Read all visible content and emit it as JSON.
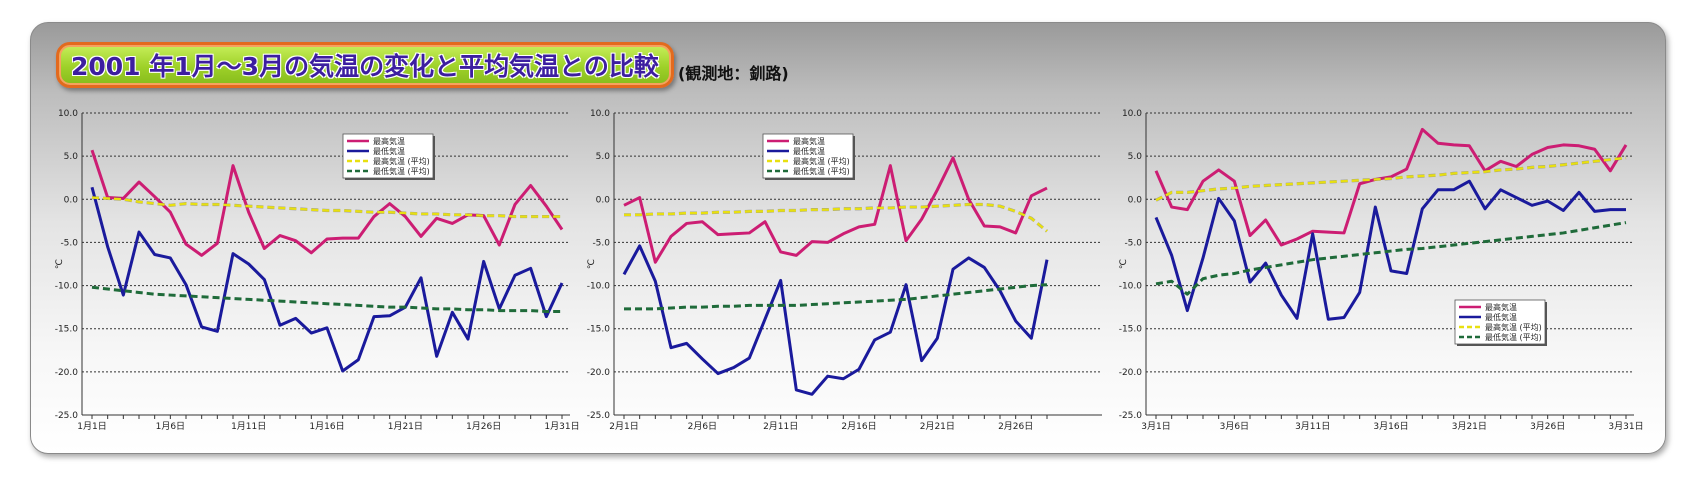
{
  "title": "2001 年1月～3月の気温の変化と平均気温との比較",
  "subtitle": "(観測地：釧路)",
  "colors": {
    "max_temp": "#cc1d73",
    "min_temp": "#1a1a9c",
    "max_avg": "#e8e010",
    "min_avg": "#1f6b3a"
  },
  "chart_data": [
    {
      "type": "line",
      "ylabel": "℃",
      "ylim": [
        -25,
        10
      ],
      "yticks": [
        "10.0",
        "5.0",
        "0.0",
        "-5.0",
        "-10.0",
        "-15.0",
        "-20.0",
        "-25.0"
      ],
      "x_tick_labels": [
        "1月1日",
        "1月6日",
        "1月11日",
        "1月16日",
        "1月21日",
        "1月26日",
        "1月31日"
      ],
      "x_tick_days": [
        1,
        6,
        11,
        16,
        21,
        26,
        31
      ],
      "legend_position": "top-center",
      "grid": true,
      "series": [
        {
          "name": "最高気温",
          "style": "solid",
          "values": [
            5.7,
            0.2,
            0.1,
            2,
            0.3,
            -1.5,
            -5.2,
            -6.5,
            -5.1,
            3.9,
            -1.5,
            -5.7,
            -4.2,
            -4.8,
            -6.2,
            -4.6,
            -4.5,
            -4.5,
            -2,
            -0.5,
            -2,
            -4.3,
            -2.2,
            -2.8,
            -1.8,
            -1.9,
            -5.3,
            -0.6,
            1.6,
            -0.8,
            -3.5
          ]
        },
        {
          "name": "最低気温",
          "style": "solid",
          "values": [
            1.4,
            -5.5,
            -11.1,
            -3.8,
            -6.4,
            -6.8,
            -9.9,
            -14.8,
            -15.3,
            -6.3,
            -7.5,
            -9.3,
            -14.6,
            -13.8,
            -15.5,
            -14.9,
            -19.9,
            -18.6,
            -13.6,
            -13.5,
            -12.5,
            -9.1,
            -18.2,
            -13.1,
            -16.2,
            -7.2,
            -12.7,
            -8.8,
            -8,
            -13.6,
            -9.7
          ]
        },
        {
          "name": "最高気温 (平均)",
          "style": "dashed",
          "values": [
            0.2,
            0.1,
            0,
            -0.3,
            -0.5,
            -0.7,
            -0.5,
            -0.6,
            -0.6,
            -0.7,
            -0.8,
            -0.9,
            -1,
            -1.1,
            -1.2,
            -1.3,
            -1.3,
            -1.4,
            -1.5,
            -1.5,
            -1.6,
            -1.7,
            -1.7,
            -1.8,
            -1.8,
            -1.9,
            -1.9,
            -2,
            -2,
            -2,
            -2
          ]
        },
        {
          "name": "最低気温 (平均)",
          "style": "dashed",
          "values": [
            -10.2,
            -10.4,
            -10.6,
            -10.8,
            -11,
            -11.1,
            -11.2,
            -11.3,
            -11.4,
            -11.5,
            -11.6,
            -11.7,
            -11.8,
            -11.9,
            -12,
            -12.1,
            -12.2,
            -12.3,
            -12.4,
            -12.5,
            -12.5,
            -12.6,
            -12.7,
            -12.7,
            -12.8,
            -12.8,
            -12.9,
            -12.9,
            -12.9,
            -13,
            -13
          ]
        }
      ]
    },
    {
      "type": "line",
      "ylabel": "℃",
      "ylim": [
        -25,
        10
      ],
      "yticks": [
        "10.0",
        "5.0",
        "0.0",
        "-5.0",
        "-10.0",
        "-15.0",
        "-20.0",
        "-25.0"
      ],
      "x_tick_labels": [
        "2月1日",
        "2月6日",
        "2月11日",
        "2月16日",
        "2月21日",
        "2月26日"
      ],
      "x_tick_days": [
        1,
        6,
        11,
        16,
        21,
        26
      ],
      "days_in_month": 28,
      "legend_position": "top-center",
      "grid": true,
      "series": [
        {
          "name": "最高気温",
          "style": "solid",
          "values": [
            -0.7,
            0.2,
            -7.3,
            -4.3,
            -2.8,
            -2.6,
            -4.1,
            -4,
            -3.9,
            -2.6,
            -6.1,
            -6.5,
            -4.9,
            -5,
            -4,
            -3.2,
            -2.9,
            3.9,
            -4.8,
            -2.3,
            1.1,
            4.8,
            0,
            -3.1,
            -3.2,
            -3.9,
            0.4,
            1.3
          ]
        },
        {
          "name": "最低気温",
          "style": "solid",
          "values": [
            -8.7,
            -5.4,
            -9.5,
            -17.2,
            -16.7,
            -18.5,
            -20.2,
            -19.5,
            -18.4,
            -13.9,
            -9.4,
            -22.1,
            -22.6,
            -20.5,
            -20.8,
            -19.7,
            -16.3,
            -15.4,
            -9.9,
            -18.7,
            -16.1,
            -8.1,
            -6.8,
            -7.9,
            -10.6,
            -14.1,
            -16.1,
            -7
          ]
        },
        {
          "name": "最高気温 (平均)",
          "style": "dashed",
          "values": [
            -1.8,
            -1.8,
            -1.7,
            -1.7,
            -1.6,
            -1.6,
            -1.5,
            -1.5,
            -1.4,
            -1.4,
            -1.3,
            -1.3,
            -1.2,
            -1.2,
            -1.1,
            -1.1,
            -1,
            -1,
            -0.9,
            -0.9,
            -0.8,
            -0.7,
            -0.6,
            -0.6,
            -0.8,
            -1.4,
            -2.2,
            -3.7
          ]
        },
        {
          "name": "最低気温 (平均)",
          "style": "dashed",
          "values": [
            -12.7,
            -12.7,
            -12.7,
            -12.6,
            -12.5,
            -12.5,
            -12.4,
            -12.4,
            -12.3,
            -12.3,
            -12.3,
            -12.3,
            -12.2,
            -12.1,
            -12,
            -11.9,
            -11.8,
            -11.7,
            -11.6,
            -11.4,
            -11.2,
            -11,
            -10.8,
            -10.6,
            -10.4,
            -10.2,
            -10,
            -9.9
          ]
        }
      ]
    },
    {
      "type": "line",
      "ylabel": "℃",
      "ylim": [
        -25,
        10
      ],
      "yticks": [
        "10.0",
        "5.0",
        "0.0",
        "-5.0",
        "-10.0",
        "-15.0",
        "-20.0",
        "-25.0"
      ],
      "x_tick_labels": [
        "3月1日",
        "3月6日",
        "3月11日",
        "3月16日",
        "3月21日",
        "3月26日",
        "3月31日"
      ],
      "x_tick_days": [
        1,
        6,
        11,
        16,
        21,
        26,
        31
      ],
      "legend_position": "bottom-right",
      "grid": true,
      "series": [
        {
          "name": "最高気温",
          "style": "solid",
          "values": [
            3.3,
            -0.9,
            -1.2,
            2.1,
            3.4,
            2.1,
            -4.2,
            -2.4,
            -5.3,
            -4.6,
            -3.7,
            -3.8,
            -3.9,
            1.8,
            2.3,
            2.6,
            3.5,
            8.1,
            6.5,
            6.3,
            6.2,
            3.3,
            4.4,
            3.8,
            5.2,
            6,
            6.3,
            6.2,
            5.8,
            3.3,
            6.3
          ]
        },
        {
          "name": "最低気温",
          "style": "solid",
          "values": [
            -2.1,
            -6.5,
            -12.9,
            -6.8,
            0.1,
            -2.5,
            -9.6,
            -7.4,
            -11.1,
            -13.8,
            -4,
            -13.9,
            -13.7,
            -10.8,
            -0.9,
            -8.3,
            -8.6,
            -1.1,
            1.1,
            1.1,
            2.1,
            -1.1,
            1.1,
            0.2,
            -0.7,
            -0.2,
            -1.3,
            0.8,
            -1.4,
            -1.2,
            -1.2
          ]
        },
        {
          "name": "最高気温 (平均)",
          "style": "dashed",
          "values": [
            -0.1,
            0.8,
            0.8,
            1,
            1.2,
            1.3,
            1.5,
            1.6,
            1.7,
            1.8,
            1.9,
            2,
            2.1,
            2.2,
            2.3,
            2.4,
            2.6,
            2.7,
            2.8,
            3,
            3.1,
            3.2,
            3.4,
            3.5,
            3.7,
            3.8,
            4,
            4.2,
            4.4,
            4.6,
            4.8
          ]
        },
        {
          "name": "最低気温 (平均)",
          "style": "dashed",
          "values": [
            -9.8,
            -9.5,
            -11,
            -9.2,
            -8.8,
            -8.6,
            -8.2,
            -7.9,
            -7.6,
            -7.3,
            -7,
            -6.8,
            -6.6,
            -6.4,
            -6.2,
            -6,
            -5.8,
            -5.7,
            -5.5,
            -5.3,
            -5.1,
            -4.9,
            -4.7,
            -4.5,
            -4.3,
            -4.1,
            -3.9,
            -3.6,
            -3.3,
            -3,
            -2.7
          ]
        }
      ]
    }
  ]
}
